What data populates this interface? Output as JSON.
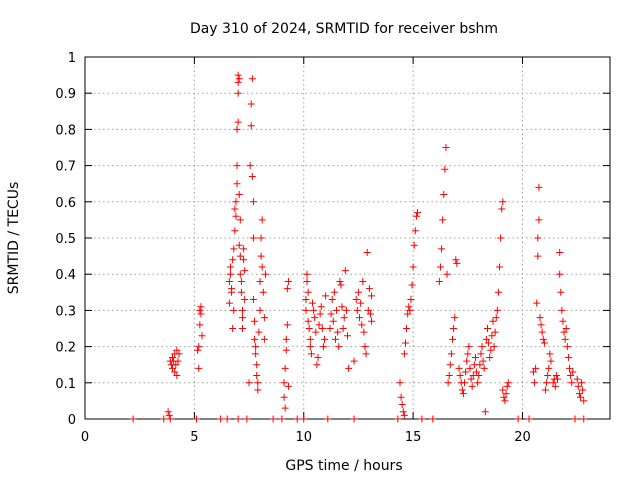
{
  "chart_data": {
    "type": "scatter",
    "title": "Day 310 of 2024, SRMTID for receiver bshm",
    "xlabel": "GPS time / hours",
    "ylabel": "SRMTID / TECUs",
    "xlim": [
      0,
      24
    ],
    "ylim": [
      0,
      1
    ],
    "xticks": [
      0,
      5,
      10,
      15,
      20
    ],
    "xtick_labels": [
      "0",
      "5",
      "10",
      "15",
      "20"
    ],
    "yticks": [
      0,
      0.1,
      0.2,
      0.3,
      0.4,
      0.5,
      0.6,
      0.7,
      0.8,
      0.9,
      1
    ],
    "ytick_labels": [
      "0",
      "0.1",
      "0.2",
      "0.3",
      "0.4",
      "0.5",
      "0.6",
      "0.7",
      "0.8",
      "0.9",
      "1"
    ],
    "grid": true,
    "marker": "plus",
    "series": [
      {
        "name": "SRMTID",
        "color": "#ff0000",
        "points": [
          [
            2.2,
            0.0
          ],
          [
            3.6,
            0.0
          ],
          [
            3.8,
            0.02
          ],
          [
            3.85,
            0.01
          ],
          [
            3.9,
            0.0
          ],
          [
            3.9,
            0.16
          ],
          [
            3.95,
            0.15
          ],
          [
            4.0,
            0.17
          ],
          [
            4.0,
            0.14
          ],
          [
            4.05,
            0.16
          ],
          [
            4.1,
            0.13
          ],
          [
            4.1,
            0.18
          ],
          [
            4.15,
            0.15
          ],
          [
            4.2,
            0.19
          ],
          [
            4.2,
            0.12
          ],
          [
            4.25,
            0.16
          ],
          [
            4.3,
            0.18
          ],
          [
            5.1,
            0.0
          ],
          [
            5.15,
            0.19
          ],
          [
            5.2,
            0.2
          ],
          [
            5.2,
            0.14
          ],
          [
            5.25,
            0.26
          ],
          [
            5.25,
            0.3
          ],
          [
            5.3,
            0.29
          ],
          [
            5.3,
            0.31
          ],
          [
            5.35,
            0.23
          ],
          [
            6.2,
            0.0
          ],
          [
            6.5,
            0.0
          ],
          [
            6.6,
            0.32
          ],
          [
            6.6,
            0.38
          ],
          [
            6.65,
            0.4
          ],
          [
            6.65,
            0.42
          ],
          [
            6.7,
            0.36
          ],
          [
            6.7,
            0.35
          ],
          [
            6.75,
            0.44
          ],
          [
            6.75,
            0.25
          ],
          [
            6.8,
            0.3
          ],
          [
            6.8,
            0.47
          ],
          [
            6.85,
            0.52
          ],
          [
            6.85,
            0.58
          ],
          [
            6.9,
            0.56
          ],
          [
            6.9,
            0.6
          ],
          [
            6.95,
            0.65
          ],
          [
            6.95,
            0.7
          ],
          [
            6.95,
            0.8
          ],
          [
            7.0,
            0.82
          ],
          [
            7.0,
            0.9
          ],
          [
            7.0,
            0.93
          ],
          [
            7.0,
            0.95
          ],
          [
            7.05,
            0.94
          ],
          [
            7.05,
            0.62
          ],
          [
            7.05,
            0.48
          ],
          [
            7.1,
            0.55
          ],
          [
            7.1,
            0.45
          ],
          [
            7.1,
            0.4
          ],
          [
            7.15,
            0.38
          ],
          [
            7.15,
            0.35
          ],
          [
            7.2,
            0.3
          ],
          [
            7.2,
            0.28
          ],
          [
            7.2,
            0.25
          ],
          [
            7.25,
            0.47
          ],
          [
            7.25,
            0.44
          ],
          [
            7.3,
            0.41
          ],
          [
            7.3,
            0.33
          ],
          [
            7.0,
            0.0
          ],
          [
            7.4,
            0.0
          ],
          [
            7.5,
            0.1
          ],
          [
            7.55,
            0.7
          ],
          [
            7.6,
            0.81
          ],
          [
            7.6,
            0.87
          ],
          [
            7.65,
            0.94
          ],
          [
            7.65,
            0.67
          ],
          [
            7.7,
            0.6
          ],
          [
            7.7,
            0.5
          ],
          [
            7.7,
            0.33
          ],
          [
            7.75,
            0.27
          ],
          [
            7.75,
            0.22
          ],
          [
            7.8,
            0.2
          ],
          [
            7.8,
            0.18
          ],
          [
            7.85,
            0.15
          ],
          [
            7.85,
            0.12
          ],
          [
            7.9,
            0.1
          ],
          [
            7.9,
            0.08
          ],
          [
            7.95,
            0.24
          ],
          [
            8.0,
            0.3
          ],
          [
            8.0,
            0.38
          ],
          [
            8.05,
            0.45
          ],
          [
            8.05,
            0.5
          ],
          [
            8.1,
            0.55
          ],
          [
            8.1,
            0.42
          ],
          [
            8.15,
            0.35
          ],
          [
            8.2,
            0.28
          ],
          [
            8.2,
            0.22
          ],
          [
            8.25,
            0.4
          ],
          [
            8.6,
            0.0
          ],
          [
            9.0,
            0.0
          ],
          [
            9.1,
            0.1
          ],
          [
            9.1,
            0.06
          ],
          [
            9.15,
            0.03
          ],
          [
            9.15,
            0.14
          ],
          [
            9.2,
            0.19
          ],
          [
            9.2,
            0.22
          ],
          [
            9.25,
            0.26
          ],
          [
            9.25,
            0.36
          ],
          [
            9.3,
            0.38
          ],
          [
            9.3,
            0.09
          ],
          [
            9.7,
            0.0
          ],
          [
            10.0,
            0.0
          ],
          [
            10.1,
            0.3
          ],
          [
            10.1,
            0.33
          ],
          [
            10.15,
            0.38
          ],
          [
            10.15,
            0.4
          ],
          [
            10.2,
            0.35
          ],
          [
            10.2,
            0.27
          ],
          [
            10.25,
            0.25
          ],
          [
            10.3,
            0.22
          ],
          [
            10.3,
            0.2
          ],
          [
            10.35,
            0.18
          ],
          [
            10.4,
            0.32
          ],
          [
            10.45,
            0.3
          ],
          [
            10.5,
            0.28
          ],
          [
            10.55,
            0.24
          ],
          [
            10.6,
            0.15
          ],
          [
            10.65,
            0.17
          ],
          [
            10.7,
            0.26
          ],
          [
            10.75,
            0.29
          ],
          [
            10.8,
            0.31
          ],
          [
            10.85,
            0.25
          ],
          [
            10.9,
            0.2
          ],
          [
            10.95,
            0.22
          ],
          [
            11.0,
            0.34
          ],
          [
            11.1,
            0.0
          ],
          [
            11.2,
            0.25
          ],
          [
            11.25,
            0.29
          ],
          [
            11.3,
            0.33
          ],
          [
            11.35,
            0.27
          ],
          [
            11.4,
            0.35
          ],
          [
            11.45,
            0.22
          ],
          [
            11.5,
            0.3
          ],
          [
            11.55,
            0.24
          ],
          [
            11.6,
            0.2
          ],
          [
            11.65,
            0.38
          ],
          [
            11.7,
            0.37
          ],
          [
            11.75,
            0.31
          ],
          [
            11.8,
            0.25
          ],
          [
            11.85,
            0.28
          ],
          [
            11.9,
            0.41
          ],
          [
            11.95,
            0.3
          ],
          [
            12.0,
            0.23
          ],
          [
            12.05,
            0.14
          ],
          [
            12.3,
            0.0
          ],
          [
            12.3,
            0.16
          ],
          [
            12.4,
            0.33
          ],
          [
            12.45,
            0.3
          ],
          [
            12.5,
            0.35
          ],
          [
            12.55,
            0.28
          ],
          [
            12.6,
            0.32
          ],
          [
            12.65,
            0.26
          ],
          [
            12.7,
            0.38
          ],
          [
            12.75,
            0.24
          ],
          [
            12.8,
            0.2
          ],
          [
            12.85,
            0.18
          ],
          [
            12.9,
            0.46
          ],
          [
            12.95,
            0.3
          ],
          [
            13.0,
            0.36
          ],
          [
            13.05,
            0.29
          ],
          [
            13.1,
            0.34
          ],
          [
            13.1,
            0.27
          ],
          [
            14.3,
            0.0
          ],
          [
            14.4,
            0.1
          ],
          [
            14.45,
            0.06
          ],
          [
            14.5,
            0.04
          ],
          [
            14.55,
            0.02
          ],
          [
            14.6,
            0.01
          ],
          [
            14.6,
            0.18
          ],
          [
            14.65,
            0.21
          ],
          [
            14.7,
            0.25
          ],
          [
            14.75,
            0.29
          ],
          [
            14.8,
            0.31
          ],
          [
            14.85,
            0.3
          ],
          [
            14.9,
            0.33
          ],
          [
            14.95,
            0.37
          ],
          [
            15.0,
            0.42
          ],
          [
            15.05,
            0.48
          ],
          [
            15.1,
            0.52
          ],
          [
            15.15,
            0.56
          ],
          [
            15.2,
            0.57
          ],
          [
            15.4,
            0.0
          ],
          [
            15.9,
            0.0
          ],
          [
            16.2,
            0.38
          ],
          [
            16.25,
            0.42
          ],
          [
            16.3,
            0.47
          ],
          [
            16.35,
            0.55
          ],
          [
            16.4,
            0.62
          ],
          [
            16.45,
            0.69
          ],
          [
            16.5,
            0.75
          ],
          [
            16.55,
            0.4
          ],
          [
            16.6,
            0.1
          ],
          [
            16.65,
            0.12
          ],
          [
            16.7,
            0.15
          ],
          [
            16.75,
            0.18
          ],
          [
            16.8,
            0.22
          ],
          [
            16.85,
            0.25
          ],
          [
            16.9,
            0.28
          ],
          [
            16.95,
            0.44
          ],
          [
            17.0,
            0.43
          ],
          [
            17.1,
            0.14
          ],
          [
            17.15,
            0.12
          ],
          [
            17.2,
            0.1
          ],
          [
            17.25,
            0.08
          ],
          [
            17.3,
            0.07
          ],
          [
            17.35,
            0.1
          ],
          [
            17.4,
            0.13
          ],
          [
            17.45,
            0.16
          ],
          [
            17.5,
            0.18
          ],
          [
            17.55,
            0.2
          ],
          [
            17.6,
            0.14
          ],
          [
            17.65,
            0.11
          ],
          [
            17.7,
            0.09
          ],
          [
            17.75,
            0.12
          ],
          [
            17.8,
            0.15
          ],
          [
            17.85,
            0.17
          ],
          [
            17.9,
            0.13
          ],
          [
            17.95,
            0.1
          ],
          [
            18.0,
            0.12
          ],
          [
            18.05,
            0.15
          ],
          [
            18.1,
            0.18
          ],
          [
            18.15,
            0.2
          ],
          [
            18.2,
            0.16
          ],
          [
            18.25,
            0.14
          ],
          [
            18.3,
            0.02
          ],
          [
            18.35,
            0.22
          ],
          [
            18.4,
            0.25
          ],
          [
            18.45,
            0.21
          ],
          [
            18.5,
            0.17
          ],
          [
            18.55,
            0.19
          ],
          [
            18.6,
            0.23
          ],
          [
            18.65,
            0.27
          ],
          [
            18.7,
            0.2
          ],
          [
            18.75,
            0.24
          ],
          [
            18.8,
            0.28
          ],
          [
            18.85,
            0.3
          ],
          [
            18.9,
            0.35
          ],
          [
            18.95,
            0.42
          ],
          [
            19.0,
            0.5
          ],
          [
            19.05,
            0.58
          ],
          [
            19.1,
            0.6
          ],
          [
            19.1,
            0.08
          ],
          [
            19.15,
            0.06
          ],
          [
            19.2,
            0.05
          ],
          [
            19.25,
            0.07
          ],
          [
            19.3,
            0.09
          ],
          [
            19.35,
            0.1
          ],
          [
            19.8,
            0.0
          ],
          [
            20.3,
            0.0
          ],
          [
            20.5,
            0.13
          ],
          [
            20.55,
            0.1
          ],
          [
            20.6,
            0.14
          ],
          [
            20.65,
            0.32
          ],
          [
            20.7,
            0.45
          ],
          [
            20.7,
            0.5
          ],
          [
            20.75,
            0.55
          ],
          [
            20.75,
            0.64
          ],
          [
            20.8,
            0.28
          ],
          [
            20.85,
            0.26
          ],
          [
            20.9,
            0.24
          ],
          [
            20.95,
            0.22
          ],
          [
            21.0,
            0.21
          ],
          [
            21.05,
            0.08
          ],
          [
            21.1,
            0.1
          ],
          [
            21.15,
            0.12
          ],
          [
            21.2,
            0.14
          ],
          [
            21.25,
            0.18
          ],
          [
            21.3,
            0.16
          ],
          [
            21.4,
            0.1
          ],
          [
            21.45,
            0.11
          ],
          [
            21.5,
            0.09
          ],
          [
            21.55,
            0.12
          ],
          [
            21.6,
            0.11
          ],
          [
            21.7,
            0.46
          ],
          [
            21.7,
            0.4
          ],
          [
            21.75,
            0.35
          ],
          [
            21.8,
            0.3
          ],
          [
            21.85,
            0.27
          ],
          [
            21.9,
            0.24
          ],
          [
            21.95,
            0.22
          ],
          [
            22.0,
            0.25
          ],
          [
            22.05,
            0.2
          ],
          [
            22.1,
            0.17
          ],
          [
            22.15,
            0.14
          ],
          [
            22.2,
            0.12
          ],
          [
            22.25,
            0.1
          ],
          [
            22.3,
            0.13
          ],
          [
            22.4,
            0.0
          ],
          [
            22.5,
            0.11
          ],
          [
            22.55,
            0.09
          ],
          [
            22.6,
            0.07
          ],
          [
            22.65,
            0.06
          ],
          [
            22.7,
            0.1
          ],
          [
            22.75,
            0.08
          ],
          [
            22.8,
            0.05
          ],
          [
            22.8,
            0.0
          ]
        ]
      }
    ]
  }
}
